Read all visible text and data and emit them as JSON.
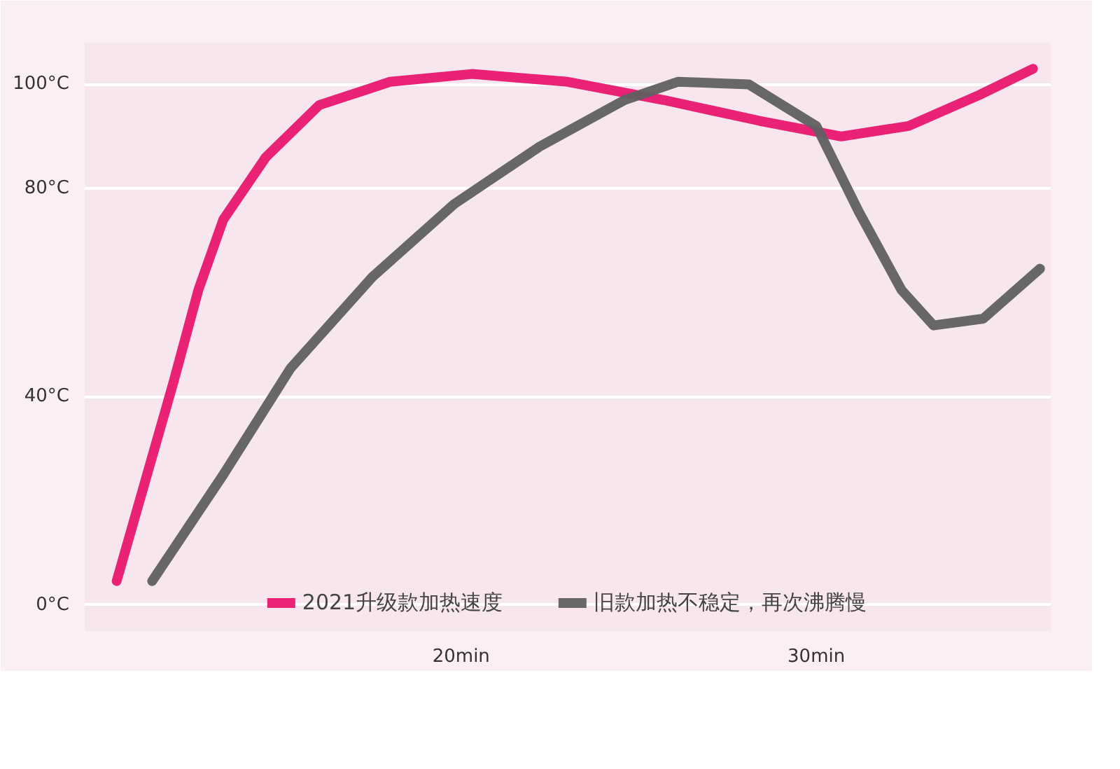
{
  "chart_data": {
    "type": "line",
    "xlim": [
      9.4,
      36.6
    ],
    "ylim": [
      -5,
      108
    ],
    "xticks": [
      {
        "value": 20,
        "label": "20min"
      },
      {
        "value": 30,
        "label": "30min"
      }
    ],
    "yticks": [
      {
        "value": 0,
        "label": "0°C"
      },
      {
        "value": 40,
        "label": "40°C"
      },
      {
        "value": 80,
        "label": "80°C"
      },
      {
        "value": 100,
        "label": "100°C"
      }
    ],
    "grid": "y",
    "legend": "bottom",
    "line_style": "solid",
    "series": [
      {
        "name": "2021升级款加热速度",
        "color": "#e8176f",
        "x": [
          10.3,
          11.9,
          12.6,
          13.3,
          14.5,
          16.0,
          18.0,
          20.3,
          23.0,
          25.7,
          28.4,
          30.7,
          32.6,
          34.6,
          36.1
        ],
        "values": [
          4.6,
          42.8,
          60.5,
          74,
          86,
          96,
          100.5,
          102,
          100.5,
          97,
          93,
          90,
          92,
          98,
          103
        ]
      },
      {
        "name": "旧款加热不稳定，再次沸腾慢",
        "color": "#606060",
        "x": [
          11.3,
          13.3,
          15.2,
          17.5,
          19.8,
          22.2,
          24.6,
          26.1,
          28.1,
          30.0,
          31.2,
          32.4,
          33.3,
          34.7,
          36.3
        ],
        "values": [
          4.6,
          25,
          45.5,
          63,
          77,
          88,
          97,
          100.5,
          100,
          92,
          75.5,
          60.5,
          53.7,
          55,
          64.6
        ]
      }
    ]
  }
}
